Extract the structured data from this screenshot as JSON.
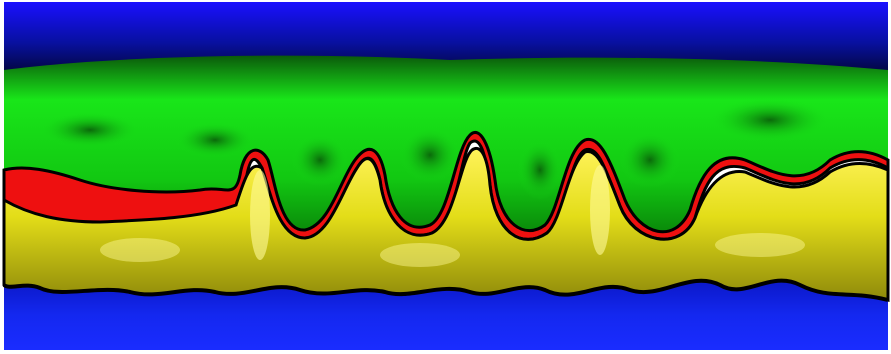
{
  "image": {
    "subject": "fluid-mixing-instability-visualization",
    "layers": [
      {
        "name": "top-fluid",
        "color": "#0a12e8"
      },
      {
        "name": "upper-fluid",
        "color": "#10e010"
      },
      {
        "name": "interface-band",
        "color": "#ee1010"
      },
      {
        "name": "lower-fluid",
        "color": "#e6e01c"
      },
      {
        "name": "bottom-fluid",
        "color": "#1020e0"
      }
    ],
    "background_frame": "#ffffff",
    "dark_gap": "#000000"
  }
}
